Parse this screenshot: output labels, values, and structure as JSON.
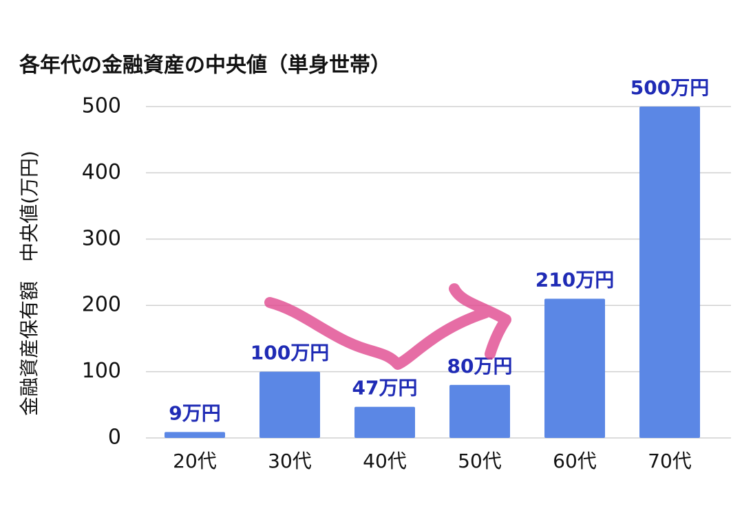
{
  "chart_data": {
    "type": "bar",
    "title": "各年代の金融資産の中央値（単身世帯）",
    "y_label": "金融資産保有額　中央値(万円)",
    "categories": [
      "20代",
      "30代",
      "40代",
      "50代",
      "60代",
      "70代"
    ],
    "values": [
      9,
      100,
      47,
      80,
      210,
      500
    ],
    "value_labels": [
      "9万円",
      "100万円",
      "47万円",
      "80万円",
      "210万円",
      "500万円"
    ],
    "color": "#5b87e5",
    "label_color": "#1f2bb5",
    "ylim": [
      0,
      500
    ],
    "yticks": [
      0,
      100,
      200,
      300,
      400,
      500
    ],
    "grid": true
  }
}
